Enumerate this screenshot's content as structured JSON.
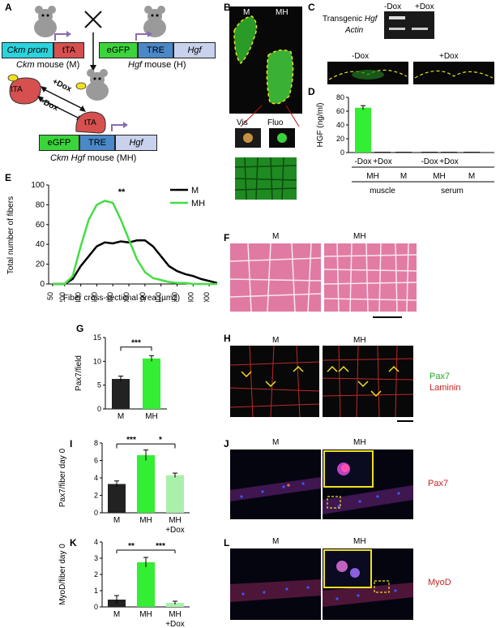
{
  "panel_labels": {
    "A": "A",
    "B": "B",
    "C": "C",
    "D": "D",
    "E": "E",
    "F": "F",
    "G": "G",
    "H": "H",
    "I": "I",
    "J": "J",
    "K": "K",
    "L": "L"
  },
  "panelA": {
    "ckm_prom": "Ckm prom",
    "tTA": "tTA",
    "egfp": "eGFP",
    "tre": "TRE",
    "hgf": "Hgf",
    "ckm_mouse_italic": "Ckm",
    "ckm_mouse_rest": " mouse (M)",
    "hgf_mouse_italic": "Hgf",
    "hgf_mouse_rest": " mouse (H)",
    "plus_dox": "+Dox",
    "minus_dox": "-Dox",
    "tTA_bound": "tTA",
    "tTA_free": "tTA",
    "mh_italic": "Ckm Hgf",
    "mh_rest": " mouse (MH)"
  },
  "panelB": {
    "m": "M",
    "mh": "MH",
    "vis": "Vis",
    "fluo": "Fluo"
  },
  "panelC": {
    "minus_dox": "-Dox",
    "plus_dox": "+Dox",
    "transgenic_prefix": "Transgenic ",
    "transgenic_gene": "Hgf",
    "actin": "Actin",
    "minus_dox2": "-Dox",
    "plus_dox2": "+Dox"
  },
  "panelD": {
    "ylabel": "HGF (ng/ml)",
    "yticks": [
      "0",
      "20",
      "40",
      "60",
      "80"
    ],
    "cond_labels": [
      "-Dox",
      "+Dox",
      "-Dox",
      "+Dox"
    ],
    "group_labels": [
      "MH",
      "M",
      "MH",
      "M"
    ],
    "tissue_labels": [
      "muscle",
      "serum"
    ]
  },
  "panelE": {
    "ylabel": "Total number of fibers",
    "xlabel": "Fiber cross-sectional area (µm2)",
    "yticks": [
      "0",
      "20",
      "40",
      "60",
      "80",
      "100"
    ],
    "xticks": [
      "50",
      "200",
      "400",
      "600",
      "800",
      "1000",
      "1200",
      "1400",
      "1600",
      "1800",
      "2000"
    ],
    "legend_m": "M",
    "legend_mh": "MH",
    "sig": "**"
  },
  "panelF": {
    "m": "M",
    "mh": "MH"
  },
  "panelG": {
    "ylabel": "Pax7/field",
    "yticks": [
      "0",
      "5",
      "10",
      "15"
    ],
    "cats": [
      "M",
      "MH"
    ],
    "sig": "***"
  },
  "panelH": {
    "m": "M",
    "mh": "MH",
    "pax7": "Pax7",
    "laminin": "Laminin"
  },
  "panelI": {
    "ylabel": "Pax7/fiber day 0",
    "yticks": [
      "0",
      "2",
      "4",
      "6",
      "8"
    ],
    "cats": [
      "M",
      "MH",
      "MH"
    ],
    "cat3_sub": "+Dox",
    "sig1": "***",
    "sig2": "*"
  },
  "panelJ": {
    "m": "M",
    "mh": "MH",
    "marker": "Pax7"
  },
  "panelK": {
    "ylabel": "MyoD/fiber day 0",
    "yticks": [
      "0",
      "1",
      "2",
      "3",
      "4"
    ],
    "cats": [
      "M",
      "MH",
      "MH"
    ],
    "cat3_sub": "+Dox",
    "sig1": "**",
    "sig2": "***"
  },
  "panelL": {
    "m": "M",
    "mh": "MH",
    "marker": "MyoD"
  },
  "chart_data": [
    {
      "panel": "D",
      "type": "bar",
      "ylabel": "HGF (ng/ml)",
      "ylim": [
        0,
        80
      ],
      "categories": [
        "MH muscle -Dox",
        "MH muscle +Dox",
        "M muscle",
        "MH serum -Dox",
        "MH serum +Dox",
        "M serum"
      ],
      "values": [
        65,
        0.5,
        0.3,
        1,
        0.3,
        0.3
      ],
      "colors": [
        "#33ee33",
        "#222222",
        "#222222",
        "#222222",
        "#222222",
        "#222222"
      ]
    },
    {
      "panel": "E",
      "type": "line",
      "xlabel": "Fiber cross-sectional area (µm2)",
      "ylabel": "Total number of fibers",
      "ylim": [
        0,
        100
      ],
      "x": [
        50,
        200,
        300,
        400,
        500,
        600,
        700,
        800,
        900,
        1000,
        1100,
        1200,
        1300,
        1400,
        1500,
        1600,
        1700,
        1800,
        1900,
        2000,
        2100
      ],
      "series": [
        {
          "name": "M",
          "color": "#000000",
          "values": [
            0,
            0,
            5,
            18,
            28,
            38,
            42,
            41,
            43,
            42,
            44,
            44,
            38,
            28,
            18,
            13,
            10,
            8,
            5,
            3,
            1
          ]
        },
        {
          "name": "MH",
          "color": "#44dd44",
          "values": [
            0,
            0,
            8,
            38,
            65,
            80,
            84,
            82,
            65,
            45,
            25,
            12,
            6,
            4,
            2,
            1,
            1,
            0,
            0,
            0,
            0
          ]
        }
      ]
    },
    {
      "panel": "G",
      "type": "bar",
      "ylabel": "Pax7/field",
      "ylim": [
        0,
        15
      ],
      "categories": [
        "M",
        "MH"
      ],
      "values": [
        6.3,
        10.6
      ],
      "errors": [
        0.6,
        0.6
      ],
      "colors": [
        "#222222",
        "#33ee33"
      ]
    },
    {
      "panel": "I",
      "type": "bar",
      "ylabel": "Pax7/fiber day 0",
      "ylim": [
        0,
        8
      ],
      "categories": [
        "M",
        "MH",
        "MH +Dox"
      ],
      "values": [
        3.3,
        6.6,
        4.3
      ],
      "errors": [
        0.35,
        0.6,
        0.25
      ],
      "colors": [
        "#222222",
        "#33ee33",
        "#aaf0aa"
      ]
    },
    {
      "panel": "K",
      "type": "bar",
      "ylabel": "MyoD/fiber day 0",
      "ylim": [
        0,
        4
      ],
      "categories": [
        "M",
        "MH",
        "MH +Dox"
      ],
      "values": [
        0.45,
        2.75,
        0.25
      ],
      "errors": [
        0.25,
        0.3,
        0.1
      ],
      "colors": [
        "#222222",
        "#33ee33",
        "#aaf0aa"
      ]
    }
  ]
}
